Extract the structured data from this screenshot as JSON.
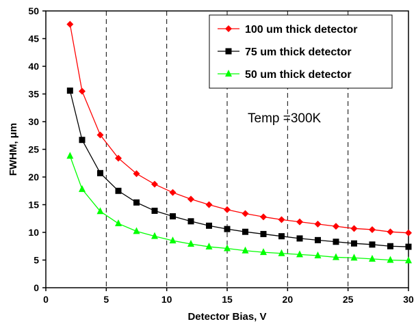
{
  "chart_data": {
    "type": "line",
    "xlabel": "Detector Bias, V",
    "ylabel": "FWHM, μm",
    "xlim": [
      0,
      30
    ],
    "ylim": [
      0,
      50
    ],
    "xticks": [
      0,
      5,
      10,
      15,
      20,
      25,
      30
    ],
    "yticks": [
      0,
      5,
      10,
      15,
      20,
      25,
      30,
      35,
      40,
      45,
      50
    ],
    "vertical_gridlines": "dashed at x = 5, 10, 15, 20, 25",
    "legend_position": "top-right",
    "annotation": "Temp =300K",
    "x": [
      2,
      3,
      4.5,
      6,
      7.5,
      9,
      10.5,
      12,
      13.5,
      15,
      16.5,
      18,
      19.5,
      21,
      22.5,
      24,
      25.5,
      27,
      28.5,
      30
    ],
    "series": [
      {
        "name": "100 um thick detector",
        "color": "#ff0000",
        "marker": "diamond",
        "values": [
          47.6,
          35.5,
          27.6,
          23.4,
          20.6,
          18.7,
          17.2,
          16.0,
          15.0,
          14.1,
          13.4,
          12.8,
          12.3,
          11.9,
          11.5,
          11.1,
          10.7,
          10.5,
          10.1,
          9.9
        ]
      },
      {
        "name": "75 um thick detector",
        "color": "#000000",
        "marker": "square",
        "values": [
          35.6,
          26.7,
          20.7,
          17.5,
          15.4,
          13.9,
          12.9,
          12.0,
          11.2,
          10.6,
          10.1,
          9.7,
          9.3,
          8.9,
          8.6,
          8.3,
          8.0,
          7.8,
          7.5,
          7.4
        ]
      },
      {
        "name": "50 um thick detector",
        "color": "#00ff00",
        "marker": "triangle",
        "values": [
          23.8,
          17.8,
          13.8,
          11.6,
          10.2,
          9.3,
          8.5,
          7.9,
          7.4,
          7.1,
          6.7,
          6.4,
          6.2,
          6.0,
          5.8,
          5.5,
          5.4,
          5.2,
          5.0,
          4.9
        ]
      }
    ]
  }
}
